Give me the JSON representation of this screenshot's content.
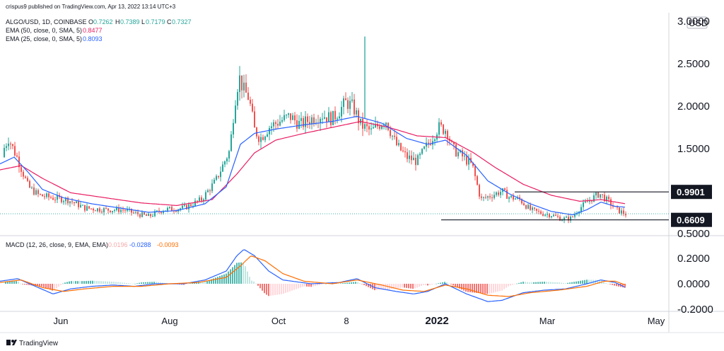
{
  "header": {
    "publisher": "crispus9 published on TradingView.com, Apr 13, 2022 13:14 UTC+3",
    "symbol": "ALGO/USD, 1D, COINBASE",
    "ohlc": {
      "o_label": "O",
      "o": "0.7262",
      "h_label": "H",
      "h": "0.7389",
      "l_label": "L",
      "l": "0.7179",
      "c_label": "C",
      "c": "0.7327"
    },
    "ema50": {
      "label": "EMA (50, close, 0, SMA, 5)",
      "value": "0.8477",
      "color": "#e91e63"
    },
    "ema25": {
      "label": "EMA (25, close, 0, SMA, 5)",
      "value": "0.8093",
      "color": "#2962ff"
    }
  },
  "currency": "USD",
  "levels": [
    {
      "value": 0.9901,
      "label": "0.9901"
    },
    {
      "value": 0.6609,
      "label": "0.6609"
    }
  ],
  "macd": {
    "label": "MACD (12, 26, close, 9, EMA, EMA)",
    "hist_value": "-0.0196",
    "macd_value": "-0.0288",
    "signal_value": "-0.0093",
    "hist_color": "#f5a9a9",
    "macd_color": "#2962ff",
    "signal_color": "#ff6d00"
  },
  "colors": {
    "up": "#26a69a",
    "down": "#ef5350",
    "line": "#131722"
  },
  "brand": "TradingView",
  "chart_data": [
    {
      "type": "candlestick",
      "title": "ALGO/USD, 1D, COINBASE",
      "y_ticks": [
        "3.0000",
        "2.5000",
        "2.0000",
        "1.5000",
        "0.5000"
      ],
      "ylim": [
        0.45,
        3.05
      ],
      "x_ticks": [
        "Jun",
        "Aug",
        "Oct",
        "8",
        "2022",
        "Mar",
        "May"
      ],
      "price_path": [
        [
          0,
          1.4
        ],
        [
          12,
          1.62
        ],
        [
          25,
          1.38
        ],
        [
          40,
          1.05
        ],
        [
          55,
          0.95
        ],
        [
          75,
          0.92
        ],
        [
          95,
          0.9
        ],
        [
          120,
          0.8
        ],
        [
          150,
          0.78
        ],
        [
          175,
          0.78
        ],
        [
          190,
          0.74
        ],
        [
          210,
          0.7
        ],
        [
          230,
          0.78
        ],
        [
          260,
          0.8
        ],
        [
          285,
          0.9
        ],
        [
          305,
          1.12
        ],
        [
          325,
          1.48
        ],
        [
          332,
          2.05
        ],
        [
          338,
          2.35
        ],
        [
          345,
          2.18
        ],
        [
          352,
          2.1
        ],
        [
          360,
          1.72
        ],
        [
          368,
          1.62
        ],
        [
          380,
          1.75
        ],
        [
          395,
          1.82
        ],
        [
          410,
          1.88
        ],
        [
          425,
          1.78
        ],
        [
          440,
          1.85
        ],
        [
          455,
          1.9
        ],
        [
          470,
          1.85
        ],
        [
          490,
          2.05
        ],
        [
          500,
          1.98
        ],
        [
          510,
          1.78
        ],
        [
          525,
          1.7
        ],
        [
          545,
          1.85
        ],
        [
          560,
          1.55
        ],
        [
          575,
          1.4
        ],
        [
          590,
          1.35
        ],
        [
          605,
          1.55
        ],
        [
          620,
          1.75
        ],
        [
          632,
          1.72
        ],
        [
          640,
          1.5
        ],
        [
          655,
          1.4
        ],
        [
          668,
          1.3
        ],
        [
          680,
          0.9
        ],
        [
          695,
          0.95
        ],
        [
          710,
          1.0
        ],
        [
          720,
          0.93
        ],
        [
          735,
          0.9
        ],
        [
          750,
          0.78
        ],
        [
          765,
          0.74
        ],
        [
          780,
          0.72
        ],
        [
          795,
          0.67
        ],
        [
          808,
          0.68
        ],
        [
          820,
          0.8
        ],
        [
          835,
          0.9
        ],
        [
          848,
          0.97
        ],
        [
          860,
          0.88
        ],
        [
          872,
          0.78
        ],
        [
          885,
          0.73
        ]
      ],
      "ema25_path": [
        [
          0,
          1.32
        ],
        [
          20,
          1.4
        ],
        [
          40,
          1.22
        ],
        [
          60,
          1.02
        ],
        [
          90,
          0.92
        ],
        [
          130,
          0.85
        ],
        [
          170,
          0.8
        ],
        [
          210,
          0.75
        ],
        [
          250,
          0.77
        ],
        [
          290,
          0.85
        ],
        [
          320,
          1.05
        ],
        [
          340,
          1.55
        ],
        [
          360,
          1.68
        ],
        [
          390,
          1.73
        ],
        [
          430,
          1.78
        ],
        [
          470,
          1.82
        ],
        [
          505,
          1.88
        ],
        [
          540,
          1.8
        ],
        [
          575,
          1.62
        ],
        [
          605,
          1.55
        ],
        [
          630,
          1.6
        ],
        [
          660,
          1.42
        ],
        [
          690,
          1.12
        ],
        [
          720,
          0.97
        ],
        [
          750,
          0.85
        ],
        [
          780,
          0.76
        ],
        [
          810,
          0.72
        ],
        [
          830,
          0.78
        ],
        [
          850,
          0.87
        ],
        [
          870,
          0.82
        ],
        [
          885,
          0.81
        ]
      ],
      "ema50_path": [
        [
          0,
          1.25
        ],
        [
          30,
          1.3
        ],
        [
          60,
          1.15
        ],
        [
          100,
          0.98
        ],
        [
          150,
          0.92
        ],
        [
          200,
          0.86
        ],
        [
          250,
          0.83
        ],
        [
          300,
          0.9
        ],
        [
          335,
          1.2
        ],
        [
          360,
          1.45
        ],
        [
          390,
          1.6
        ],
        [
          430,
          1.68
        ],
        [
          470,
          1.75
        ],
        [
          510,
          1.82
        ],
        [
          550,
          1.75
        ],
        [
          590,
          1.65
        ],
        [
          630,
          1.63
        ],
        [
          670,
          1.45
        ],
        [
          700,
          1.28
        ],
        [
          740,
          1.08
        ],
        [
          780,
          0.95
        ],
        [
          820,
          0.88
        ],
        [
          850,
          0.9
        ],
        [
          885,
          0.85
        ]
      ],
      "spike": {
        "x": 516,
        "high": 2.82,
        "low": 1.85
      },
      "last_price": 0.7327
    },
    {
      "type": "line",
      "title": "MACD (12, 26, close, 9, EMA, EMA)",
      "y_ticks": [
        "0.2000",
        "0.0000",
        "-0.2000"
      ],
      "ylim": [
        -0.2,
        0.28
      ],
      "series": [
        {
          "name": "MACD",
          "color": "#2962ff",
          "values": [
            [
              0,
              0.02
            ],
            [
              25,
              0.04
            ],
            [
              50,
              -0.02
            ],
            [
              75,
              -0.08
            ],
            [
              100,
              -0.04
            ],
            [
              130,
              -0.02
            ],
            [
              160,
              -0.01
            ],
            [
              190,
              -0.02
            ],
            [
              220,
              0.0
            ],
            [
              260,
              0.0
            ],
            [
              290,
              0.03
            ],
            [
              320,
              0.1
            ],
            [
              335,
              0.22
            ],
            [
              345,
              0.27
            ],
            [
              360,
              0.22
            ],
            [
              380,
              0.1
            ],
            [
              400,
              0.03
            ],
            [
              440,
              0.0
            ],
            [
              480,
              0.01
            ],
            [
              505,
              0.04
            ],
            [
              530,
              -0.03
            ],
            [
              560,
              -0.06
            ],
            [
              585,
              -0.08
            ],
            [
              605,
              -0.06
            ],
            [
              630,
              0.0
            ],
            [
              660,
              -0.08
            ],
            [
              690,
              -0.14
            ],
            [
              710,
              -0.13
            ],
            [
              740,
              -0.07
            ],
            [
              770,
              -0.05
            ],
            [
              800,
              -0.04
            ],
            [
              830,
              0.0
            ],
            [
              850,
              0.03
            ],
            [
              870,
              0.01
            ],
            [
              885,
              -0.03
            ]
          ]
        },
        {
          "name": "Signal",
          "color": "#ff6d00",
          "values": [
            [
              0,
              0.01
            ],
            [
              30,
              0.03
            ],
            [
              60,
              -0.03
            ],
            [
              90,
              -0.06
            ],
            [
              120,
              -0.04
            ],
            [
              160,
              -0.02
            ],
            [
              200,
              -0.02
            ],
            [
              240,
              0.0
            ],
            [
              280,
              0.01
            ],
            [
              320,
              0.05
            ],
            [
              340,
              0.14
            ],
            [
              355,
              0.22
            ],
            [
              375,
              0.18
            ],
            [
              400,
              0.08
            ],
            [
              430,
              0.02
            ],
            [
              470,
              0.0
            ],
            [
              505,
              0.03
            ],
            [
              540,
              -0.01
            ],
            [
              570,
              -0.05
            ],
            [
              600,
              -0.06
            ],
            [
              630,
              -0.01
            ],
            [
              660,
              -0.04
            ],
            [
              690,
              -0.09
            ],
            [
              720,
              -0.1
            ],
            [
              750,
              -0.07
            ],
            [
              790,
              -0.05
            ],
            [
              830,
              -0.02
            ],
            [
              855,
              0.02
            ],
            [
              870,
              0.02
            ],
            [
              885,
              -0.01
            ]
          ]
        }
      ]
    }
  ]
}
